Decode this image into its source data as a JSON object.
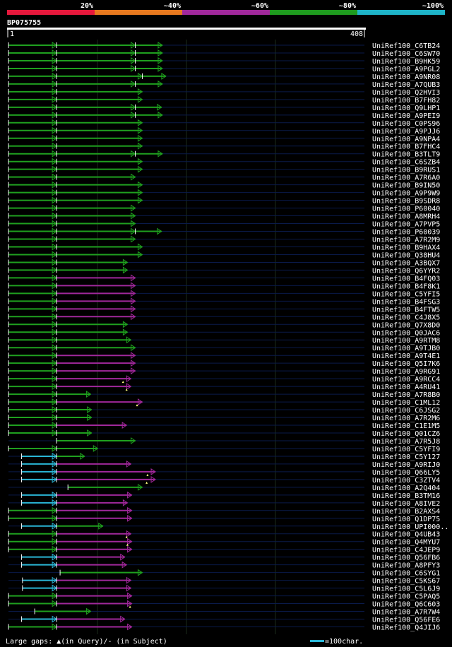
{
  "chart_data": {
    "type": "alignment-graphic",
    "query_id": "BP075755",
    "query_range": [
      1,
      408
    ],
    "scale_start_label": "1",
    "scale_end_label": "408",
    "identity_legend": [
      {
        "label": "20%",
        "color": "#e6183c"
      },
      {
        "label": "~40%",
        "color": "#e6781e"
      },
      {
        "label": "~60%",
        "color": "#a0289b"
      },
      {
        "label": "~80%",
        "color": "#1e9b1e"
      },
      {
        "label": "~100%",
        "color": "#1eb4c8"
      }
    ],
    "footer_left": "Large gaps: ▲(in Query)/- (in Subject)",
    "footer_right": "=100char.",
    "hit_colors": {
      "green": "#1fa01f",
      "purple": "#a0289b",
      "cyan": "#2ab6d6",
      "line": "#0a1a4a"
    },
    "hits": [
      {
        "label": "UniRef100_C6TB24",
        "segs": [
          [
            1,
            56,
            "green"
          ],
          [
            56,
            146,
            "green"
          ],
          [
            146,
            177,
            "green"
          ]
        ]
      },
      {
        "label": "UniRef100_C6SW70",
        "segs": [
          [
            1,
            56,
            "green"
          ],
          [
            56,
            146,
            "green"
          ],
          [
            146,
            177,
            "green"
          ]
        ]
      },
      {
        "label": "UniRef100_B9HK59",
        "segs": [
          [
            1,
            56,
            "green"
          ],
          [
            56,
            146,
            "green"
          ],
          [
            146,
            177,
            "green"
          ]
        ]
      },
      {
        "label": "UniRef100_A9PGL2",
        "segs": [
          [
            1,
            56,
            "green"
          ],
          [
            56,
            146,
            "green"
          ],
          [
            146,
            177,
            "green"
          ]
        ]
      },
      {
        "label": "UniRef100_A9NR08",
        "segs": [
          [
            1,
            56,
            "green"
          ],
          [
            56,
            154,
            "green"
          ],
          [
            154,
            181,
            "green"
          ]
        ]
      },
      {
        "label": "UniRef100_A7QUB3",
        "segs": [
          [
            1,
            56,
            "green"
          ],
          [
            56,
            146,
            "green"
          ],
          [
            146,
            177,
            "green"
          ]
        ]
      },
      {
        "label": "UniRef100_Q2HVI3",
        "segs": [
          [
            1,
            56,
            "green"
          ],
          [
            56,
            154,
            "green"
          ]
        ]
      },
      {
        "label": "UniRef100_B7FH82",
        "segs": [
          [
            1,
            56,
            "green"
          ],
          [
            56,
            154,
            "green"
          ]
        ]
      },
      {
        "label": "UniRef100_Q9LHP1",
        "segs": [
          [
            1,
            56,
            "green"
          ],
          [
            56,
            146,
            "green"
          ],
          [
            146,
            176,
            "green"
          ]
        ]
      },
      {
        "label": "UniRef100_A9PEI9",
        "segs": [
          [
            1,
            56,
            "green"
          ],
          [
            56,
            146,
            "green"
          ],
          [
            146,
            177,
            "green"
          ]
        ]
      },
      {
        "label": "UniRef100_C0PS96",
        "segs": [
          [
            1,
            56,
            "green"
          ],
          [
            56,
            154,
            "green"
          ]
        ]
      },
      {
        "label": "UniRef100_A9PJJ6",
        "segs": [
          [
            1,
            56,
            "green"
          ],
          [
            56,
            154,
            "green"
          ]
        ]
      },
      {
        "label": "UniRef100_A9NPA4",
        "segs": [
          [
            1,
            56,
            "green"
          ],
          [
            56,
            154,
            "green"
          ]
        ]
      },
      {
        "label": "UniRef100_B7FHC4",
        "segs": [
          [
            1,
            56,
            "green"
          ],
          [
            56,
            154,
            "green"
          ]
        ]
      },
      {
        "label": "UniRef100_B3TLT9",
        "segs": [
          [
            1,
            56,
            "green"
          ],
          [
            56,
            146,
            "green"
          ],
          [
            146,
            177,
            "green"
          ]
        ]
      },
      {
        "label": "UniRef100_C6SZB4",
        "segs": [
          [
            1,
            56,
            "green"
          ],
          [
            56,
            154,
            "green"
          ]
        ]
      },
      {
        "label": "UniRef100_B9RUS1",
        "segs": [
          [
            1,
            56,
            "green"
          ],
          [
            56,
            154,
            "green"
          ]
        ]
      },
      {
        "label": "UniRef100_A7R6A0",
        "segs": [
          [
            1,
            56,
            "green"
          ],
          [
            56,
            146,
            "green"
          ]
        ]
      },
      {
        "label": "UniRef100_B9IN50",
        "segs": [
          [
            1,
            56,
            "green"
          ],
          [
            56,
            154,
            "green"
          ]
        ]
      },
      {
        "label": "UniRef100_A9P9W9",
        "segs": [
          [
            1,
            56,
            "green"
          ],
          [
            56,
            154,
            "green"
          ]
        ]
      },
      {
        "label": "UniRef100_B9SDR8",
        "segs": [
          [
            1,
            56,
            "green"
          ],
          [
            56,
            154,
            "green"
          ]
        ]
      },
      {
        "label": "UniRef100_P60040",
        "segs": [
          [
            1,
            56,
            "green"
          ],
          [
            56,
            146,
            "green"
          ]
        ]
      },
      {
        "label": "UniRef100_A8MRH4",
        "segs": [
          [
            1,
            56,
            "green"
          ],
          [
            56,
            146,
            "green"
          ]
        ]
      },
      {
        "label": "UniRef100_A7PVP5",
        "segs": [
          [
            1,
            56,
            "green"
          ],
          [
            56,
            146,
            "green"
          ]
        ]
      },
      {
        "label": "UniRef100_P60039",
        "segs": [
          [
            1,
            56,
            "green"
          ],
          [
            56,
            146,
            "green"
          ],
          [
            146,
            176,
            "green"
          ]
        ]
      },
      {
        "label": "UniRef100_A7R2M9",
        "segs": [
          [
            1,
            56,
            "green"
          ],
          [
            56,
            146,
            "green"
          ]
        ]
      },
      {
        "label": "UniRef100_B9HAX4",
        "segs": [
          [
            1,
            56,
            "green"
          ],
          [
            56,
            154,
            "green"
          ]
        ]
      },
      {
        "label": "UniRef100_Q38HU4",
        "segs": [
          [
            1,
            56,
            "green"
          ],
          [
            56,
            154,
            "green"
          ]
        ]
      },
      {
        "label": "UniRef100_A3BQX7",
        "segs": [
          [
            1,
            56,
            "green"
          ],
          [
            56,
            137,
            "green"
          ]
        ]
      },
      {
        "label": "UniRef100_Q6YYR2",
        "segs": [
          [
            1,
            56,
            "green"
          ],
          [
            56,
            137,
            "green"
          ]
        ]
      },
      {
        "label": "UniRef100_B4FQ03",
        "segs": [
          [
            1,
            56,
            "green"
          ],
          [
            56,
            146,
            "purple"
          ]
        ]
      },
      {
        "label": "UniRef100_B4F8K1",
        "segs": [
          [
            1,
            56,
            "green"
          ],
          [
            56,
            146,
            "purple"
          ]
        ]
      },
      {
        "label": "UniRef100_C5YFI5",
        "segs": [
          [
            1,
            56,
            "green"
          ],
          [
            56,
            146,
            "purple"
          ]
        ]
      },
      {
        "label": "UniRef100_B4FSG3",
        "segs": [
          [
            1,
            56,
            "green"
          ],
          [
            56,
            146,
            "purple"
          ]
        ]
      },
      {
        "label": "UniRef100_B4FTW5",
        "segs": [
          [
            1,
            56,
            "green"
          ],
          [
            56,
            146,
            "purple"
          ]
        ]
      },
      {
        "label": "UniRef100_C4J8X5",
        "segs": [
          [
            1,
            56,
            "green"
          ],
          [
            56,
            146,
            "purple"
          ]
        ]
      },
      {
        "label": "UniRef100_Q7X8D0",
        "segs": [
          [
            1,
            56,
            "green"
          ],
          [
            56,
            137,
            "green"
          ]
        ]
      },
      {
        "label": "UniRef100_Q0JAC6",
        "segs": [
          [
            1,
            56,
            "green"
          ],
          [
            56,
            137,
            "green"
          ]
        ]
      },
      {
        "label": "UniRef100_A9RTM8",
        "segs": [
          [
            1,
            56,
            "green"
          ],
          [
            56,
            141,
            "green"
          ]
        ]
      },
      {
        "label": "UniRef100_A9TJB0",
        "segs": [
          [
            1,
            56,
            "green"
          ],
          [
            56,
            146,
            "green"
          ]
        ]
      },
      {
        "label": "UniRef100_A9T4E1",
        "segs": [
          [
            1,
            56,
            "green"
          ],
          [
            56,
            146,
            "purple"
          ]
        ]
      },
      {
        "label": "UniRef100_Q5I7K6",
        "segs": [
          [
            1,
            56,
            "green"
          ],
          [
            56,
            146,
            "purple"
          ]
        ]
      },
      {
        "label": "UniRef100_A9RG91",
        "segs": [
          [
            1,
            56,
            "green"
          ],
          [
            56,
            146,
            "purple"
          ]
        ]
      },
      {
        "label": "UniRef100_A9RCC4",
        "segs": [
          [
            1,
            56,
            "green"
          ],
          [
            56,
            141,
            "purple"
          ]
        ],
        "marks": [
          132
        ]
      },
      {
        "label": "UniRef100_A4RU41",
        "segs": [
          [
            1,
            56,
            "green"
          ],
          [
            56,
            141,
            "purple"
          ]
        ],
        "marks": [
          136
        ]
      },
      {
        "label": "UniRef100_A7R8B0",
        "segs": [
          [
            1,
            56,
            "green"
          ],
          [
            56,
            95,
            "green"
          ]
        ]
      },
      {
        "label": "UniRef100_C1ML12",
        "segs": [
          [
            1,
            56,
            "green"
          ],
          [
            56,
            154,
            "purple"
          ]
        ],
        "marks": [
          148
        ]
      },
      {
        "label": "UniRef100_C6JSG2",
        "segs": [
          [
            1,
            56,
            "green"
          ],
          [
            56,
            96,
            "green"
          ]
        ]
      },
      {
        "label": "UniRef100_A7R2M6",
        "segs": [
          [
            1,
            56,
            "green"
          ],
          [
            56,
            96,
            "green"
          ]
        ]
      },
      {
        "label": "UniRef100_C1E1M5",
        "segs": [
          [
            1,
            56,
            "green"
          ],
          [
            56,
            136,
            "purple"
          ]
        ]
      },
      {
        "label": "UniRef100_Q01CZ6",
        "segs": [
          [
            1,
            56,
            "green"
          ],
          [
            56,
            96,
            "green"
          ]
        ]
      },
      {
        "label": "UniRef100_A7R5J8",
        "segs": [
          [
            56,
            146,
            "green"
          ]
        ]
      },
      {
        "label": "UniRef100_C5YFI9",
        "segs": [
          [
            1,
            56,
            "green"
          ],
          [
            56,
            103,
            "green"
          ]
        ]
      },
      {
        "label": "UniRef100_C5Y127",
        "segs": [
          [
            16,
            56,
            "cyan"
          ],
          [
            56,
            88,
            "green"
          ]
        ]
      },
      {
        "label": "UniRef100_A9RIJ0",
        "segs": [
          [
            16,
            56,
            "cyan"
          ],
          [
            56,
            141,
            "purple"
          ]
        ]
      },
      {
        "label": "UniRef100_Q66LY5",
        "segs": [
          [
            16,
            56,
            "cyan"
          ],
          [
            56,
            169,
            "purple"
          ]
        ],
        "marks": [
          160
        ]
      },
      {
        "label": "UniRef100_C3ZTV4",
        "segs": [
          [
            16,
            56,
            "cyan"
          ],
          [
            56,
            169,
            "purple"
          ]
        ],
        "marks": [
          159
        ]
      },
      {
        "label": "UniRef100_A2Q404",
        "segs": [
          [
            69,
            154,
            "green"
          ]
        ]
      },
      {
        "label": "UniRef100_B3TM16",
        "segs": [
          [
            16,
            56,
            "cyan"
          ],
          [
            56,
            142,
            "purple"
          ]
        ]
      },
      {
        "label": "UniRef100_A8IVE2",
        "segs": [
          [
            16,
            56,
            "cyan"
          ],
          [
            56,
            137,
            "purple"
          ]
        ]
      },
      {
        "label": "UniRef100_B2AXS4",
        "segs": [
          [
            1,
            56,
            "green"
          ],
          [
            56,
            142,
            "purple"
          ]
        ]
      },
      {
        "label": "UniRef100_Q1DP75",
        "segs": [
          [
            1,
            56,
            "green"
          ],
          [
            56,
            142,
            "purple"
          ]
        ]
      },
      {
        "label": "UniRef100_UPI000..",
        "segs": [
          [
            16,
            56,
            "cyan"
          ],
          [
            56,
            109,
            "green"
          ]
        ]
      },
      {
        "label": "UniRef100_Q4UB43",
        "segs": [
          [
            1,
            56,
            "green"
          ],
          [
            56,
            141,
            "purple"
          ]
        ],
        "marks": [
          136
        ]
      },
      {
        "label": "UniRef100_Q4MYU7",
        "segs": [
          [
            1,
            56,
            "green"
          ],
          [
            56,
            142,
            "purple"
          ]
        ],
        "marks": [
          137
        ]
      },
      {
        "label": "UniRef100_C4JEP9",
        "segs": [
          [
            1,
            56,
            "green"
          ],
          [
            56,
            142,
            "purple"
          ]
        ]
      },
      {
        "label": "UniRef100_Q56FB6",
        "segs": [
          [
            16,
            56,
            "cyan"
          ],
          [
            56,
            134,
            "purple"
          ]
        ]
      },
      {
        "label": "UniRef100_A8PFY3",
        "segs": [
          [
            16,
            56,
            "cyan"
          ],
          [
            56,
            136,
            "purple"
          ]
        ]
      },
      {
        "label": "UniRef100_C6SYG1",
        "segs": [
          [
            60,
            154,
            "green"
          ]
        ]
      },
      {
        "label": "UniRef100_C5KS67",
        "segs": [
          [
            17,
            56,
            "cyan"
          ],
          [
            56,
            141,
            "purple"
          ]
        ]
      },
      {
        "label": "UniRef100_C5L6J9",
        "segs": [
          [
            17,
            56,
            "cyan"
          ],
          [
            56,
            141,
            "purple"
          ]
        ]
      },
      {
        "label": "UniRef100_C5PAQ5",
        "segs": [
          [
            1,
            56,
            "green"
          ],
          [
            56,
            142,
            "purple"
          ]
        ]
      },
      {
        "label": "UniRef100_Q6C603",
        "segs": [
          [
            1,
            56,
            "green"
          ],
          [
            56,
            142,
            "purple"
          ]
        ],
        "marks": [
          140
        ]
      },
      {
        "label": "UniRef100_A7R7W4",
        "segs": [
          [
            31,
            95,
            "green"
          ]
        ]
      },
      {
        "label": "UniRef100_Q56FE6",
        "segs": [
          [
            16,
            56,
            "cyan"
          ],
          [
            56,
            134,
            "purple"
          ]
        ]
      },
      {
        "label": "UniRef100_Q4JIJ6",
        "segs": [
          [
            1,
            56,
            "green"
          ],
          [
            56,
            142,
            "purple"
          ]
        ]
      }
    ]
  }
}
